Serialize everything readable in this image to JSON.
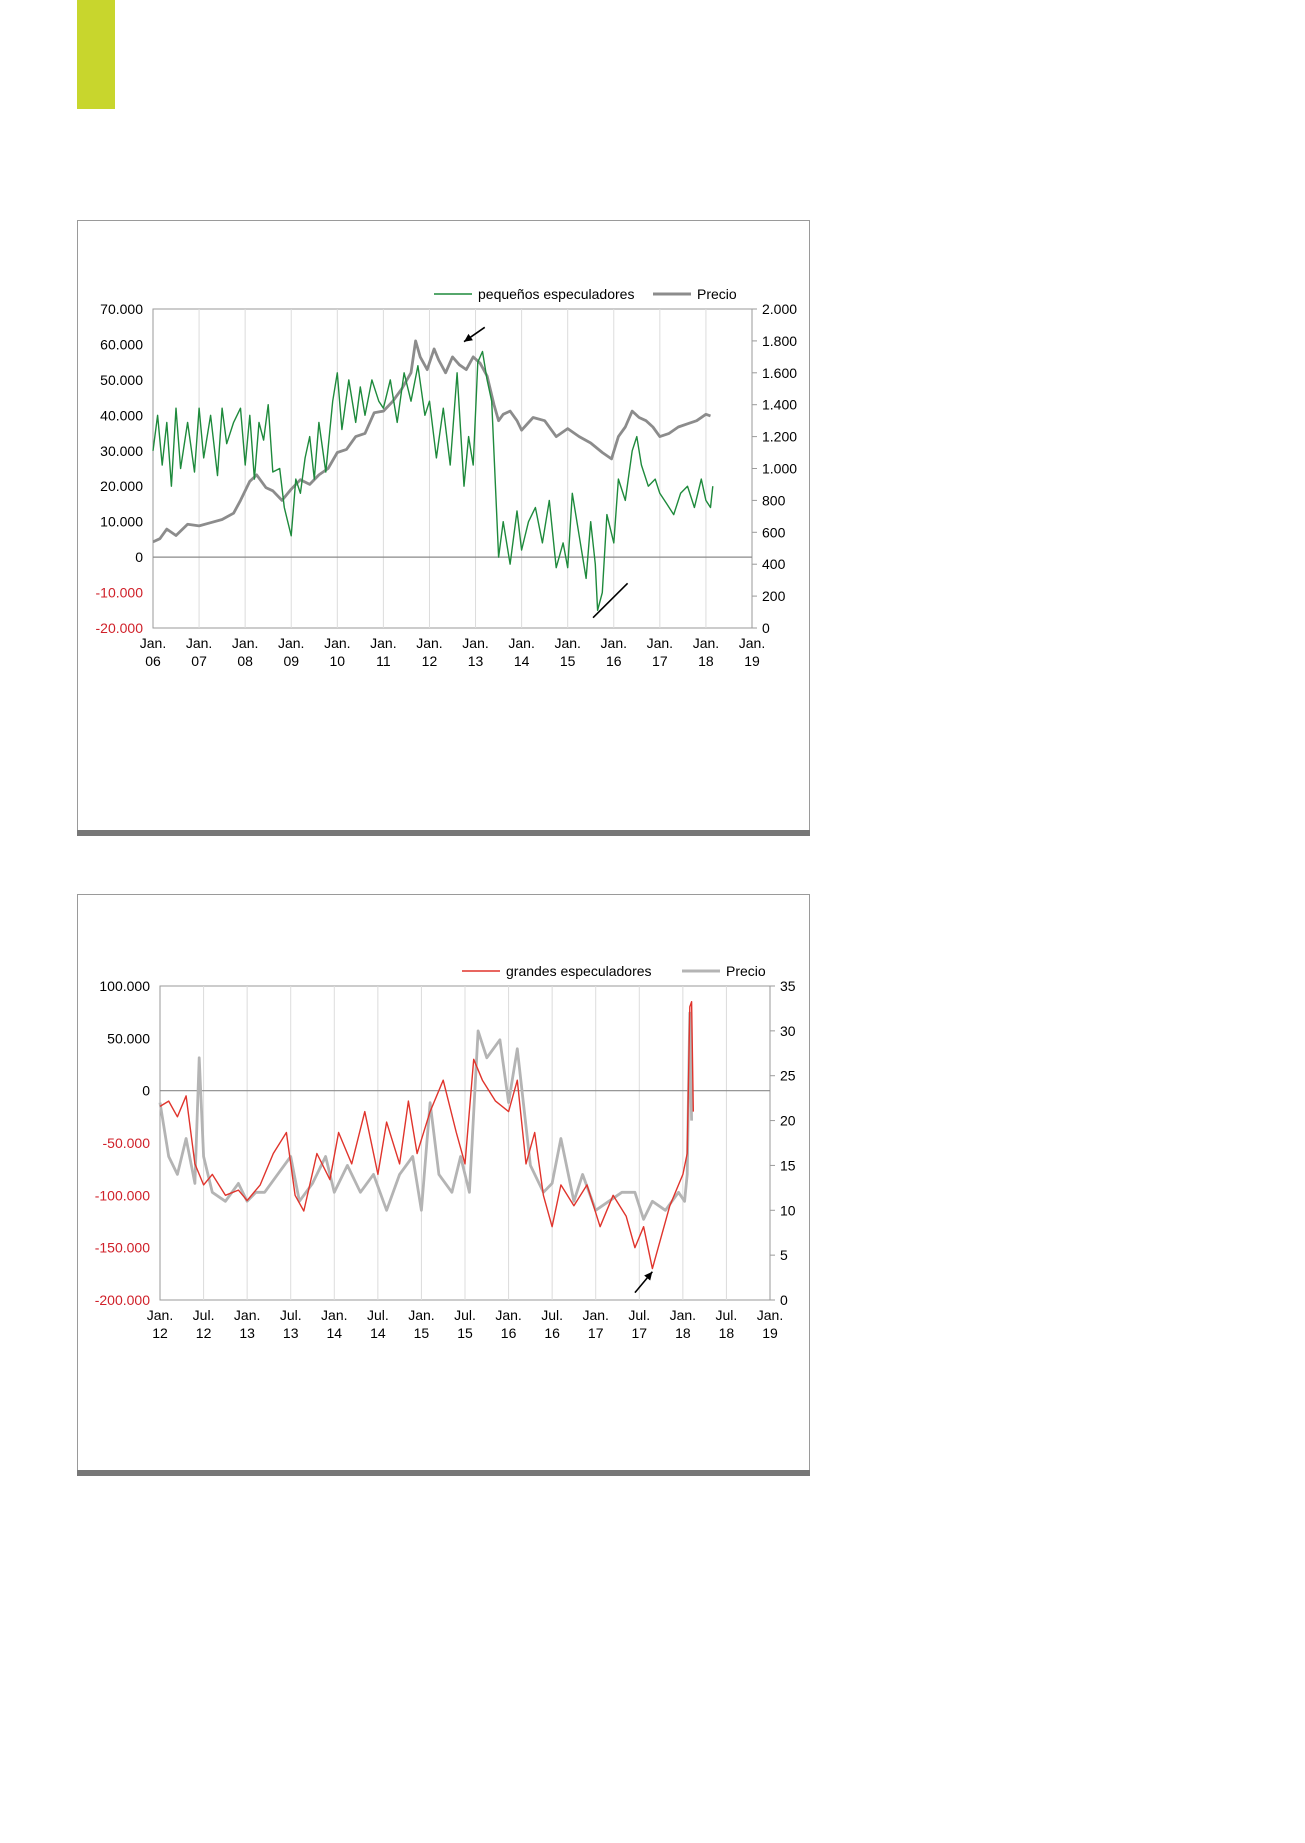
{
  "page": {
    "accent_color": "#c8d62d",
    "rule_color": "#777777"
  },
  "chart_data": [
    {
      "type": "line",
      "legend_position": "top-right",
      "grid": true,
      "x_ticks": [
        {
          "label": "Jan.",
          "sub": "06",
          "t": 2006.0
        },
        {
          "label": "Jan.",
          "sub": "07",
          "t": 2007.0
        },
        {
          "label": "Jan.",
          "sub": "08",
          "t": 2008.0
        },
        {
          "label": "Jan.",
          "sub": "09",
          "t": 2009.0
        },
        {
          "label": "Jan.",
          "sub": "10",
          "t": 2010.0
        },
        {
          "label": "Jan.",
          "sub": "11",
          "t": 2011.0
        },
        {
          "label": "Jan.",
          "sub": "12",
          "t": 2012.0
        },
        {
          "label": "Jan.",
          "sub": "13",
          "t": 2013.0
        },
        {
          "label": "Jan.",
          "sub": "14",
          "t": 2014.0
        },
        {
          "label": "Jan.",
          "sub": "15",
          "t": 2015.0
        },
        {
          "label": "Jan.",
          "sub": "16",
          "t": 2016.0
        },
        {
          "label": "Jan.",
          "sub": "17",
          "t": 2017.0
        },
        {
          "label": "Jan.",
          "sub": "18",
          "t": 2018.0
        },
        {
          "label": "Jan.",
          "sub": "19",
          "t": 2019.0
        }
      ],
      "xlim": [
        2006.0,
        2019.0
      ],
      "y_left": {
        "lim": [
          -20000,
          70000
        ],
        "ticks": [
          {
            "v": 70000,
            "label": "70.000",
            "color": "#000000"
          },
          {
            "v": 60000,
            "label": "60.000",
            "color": "#000000"
          },
          {
            "v": 50000,
            "label": "50.000",
            "color": "#000000"
          },
          {
            "v": 40000,
            "label": "40.000",
            "color": "#000000"
          },
          {
            "v": 30000,
            "label": "30.000",
            "color": "#000000"
          },
          {
            "v": 20000,
            "label": "20.000",
            "color": "#000000"
          },
          {
            "v": 10000,
            "label": "10.000",
            "color": "#000000"
          },
          {
            "v": 0,
            "label": "0",
            "color": "#000000"
          },
          {
            "v": -10000,
            "label": "-10.000",
            "color": "#d0212a"
          },
          {
            "v": -20000,
            "label": "-20.000",
            "color": "#d0212a"
          }
        ]
      },
      "y_right": {
        "lim": [
          0,
          2000
        ],
        "ticks": [
          {
            "v": 2000,
            "label": "2.000"
          },
          {
            "v": 1800,
            "label": "1.800"
          },
          {
            "v": 1600,
            "label": "1.600"
          },
          {
            "v": 1400,
            "label": "1.400"
          },
          {
            "v": 1200,
            "label": "1.200"
          },
          {
            "v": 1000,
            "label": "1.000"
          },
          {
            "v": 800,
            "label": "800"
          },
          {
            "v": 600,
            "label": "600"
          },
          {
            "v": 400,
            "label": "400"
          },
          {
            "v": 200,
            "label": "200"
          },
          {
            "v": 0,
            "label": "0"
          }
        ]
      },
      "series": [
        {
          "name": "pequeños especuladores",
          "axis": "left",
          "color": "#1e8a3c",
          "x": [
            2006.0,
            2006.1,
            2006.2,
            2006.3,
            2006.4,
            2006.5,
            2006.6,
            2006.75,
            2006.9,
            2007.0,
            2007.1,
            2007.25,
            2007.4,
            2007.5,
            2007.6,
            2007.75,
            2007.9,
            2008.0,
            2008.1,
            2008.2,
            2008.3,
            2008.4,
            2008.5,
            2008.6,
            2008.75,
            2008.85,
            2009.0,
            2009.1,
            2009.2,
            2009.3,
            2009.4,
            2009.5,
            2009.6,
            2009.75,
            2009.9,
            2010.0,
            2010.1,
            2010.25,
            2010.4,
            2010.5,
            2010.6,
            2010.75,
            2010.9,
            2011.0,
            2011.15,
            2011.3,
            2011.45,
            2011.6,
            2011.75,
            2011.9,
            2012.0,
            2012.15,
            2012.3,
            2012.45,
            2012.6,
            2012.75,
            2012.85,
            2012.95,
            2013.05,
            2013.15,
            2013.25,
            2013.35,
            2013.5,
            2013.6,
            2013.75,
            2013.9,
            2014.0,
            2014.15,
            2014.3,
            2014.45,
            2014.6,
            2014.75,
            2014.9,
            2015.0,
            2015.1,
            2015.25,
            2015.4,
            2015.5,
            2015.6,
            2015.65,
            2015.75,
            2015.85,
            2016.0,
            2016.1,
            2016.25,
            2016.4,
            2016.5,
            2016.6,
            2016.75,
            2016.9,
            2017.0,
            2017.15,
            2017.3,
            2017.45,
            2017.6,
            2017.75,
            2017.9,
            2018.0,
            2018.1,
            2018.15
          ],
          "y": [
            30000,
            40000,
            26000,
            38000,
            20000,
            42000,
            25000,
            38000,
            24000,
            42000,
            28000,
            40000,
            23000,
            42000,
            32000,
            38000,
            42000,
            26000,
            40000,
            22000,
            38000,
            33000,
            43000,
            24000,
            25000,
            14000,
            6000,
            22000,
            18000,
            28000,
            34000,
            22000,
            38000,
            24000,
            44000,
            52000,
            36000,
            50000,
            38000,
            48000,
            40000,
            50000,
            44000,
            42000,
            50000,
            38000,
            52000,
            44000,
            54000,
            40000,
            44000,
            28000,
            42000,
            26000,
            52000,
            20000,
            34000,
            26000,
            55000,
            58000,
            50000,
            44000,
            0,
            10000,
            -2000,
            13000,
            2000,
            10000,
            14000,
            4000,
            16000,
            -3000,
            4000,
            -3000,
            18000,
            6000,
            -6000,
            10000,
            -2000,
            -15000,
            -10000,
            12000,
            4000,
            22000,
            16000,
            30000,
            34000,
            26000,
            20000,
            22000,
            18000,
            15000,
            12000,
            18000,
            20000,
            14000,
            22000,
            16000,
            14000,
            20000
          ]
        },
        {
          "name": "Precio",
          "axis": "right",
          "color": "#8c8c8c",
          "x": [
            2006.0,
            2006.15,
            2006.3,
            2006.5,
            2006.75,
            2007.0,
            2007.25,
            2007.5,
            2007.75,
            2007.9,
            2008.1,
            2008.25,
            2008.45,
            2008.6,
            2008.8,
            2009.0,
            2009.2,
            2009.4,
            2009.6,
            2009.8,
            2010.0,
            2010.2,
            2010.4,
            2010.6,
            2010.8,
            2011.0,
            2011.2,
            2011.4,
            2011.6,
            2011.7,
            2011.8,
            2011.95,
            2012.1,
            2012.2,
            2012.35,
            2012.5,
            2012.65,
            2012.8,
            2012.95,
            2013.1,
            2013.25,
            2013.4,
            2013.5,
            2013.6,
            2013.75,
            2013.9,
            2014.0,
            2014.25,
            2014.5,
            2014.75,
            2015.0,
            2015.25,
            2015.5,
            2015.75,
            2015.95,
            2016.1,
            2016.25,
            2016.4,
            2016.55,
            2016.7,
            2016.85,
            2017.0,
            2017.2,
            2017.4,
            2017.6,
            2017.8,
            2018.0,
            2018.1
          ],
          "y": [
            540,
            560,
            620,
            580,
            650,
            640,
            660,
            680,
            720,
            800,
            920,
            960,
            880,
            860,
            800,
            870,
            930,
            900,
            960,
            1000,
            1100,
            1120,
            1200,
            1220,
            1350,
            1360,
            1420,
            1500,
            1600,
            1800,
            1700,
            1620,
            1750,
            1680,
            1600,
            1700,
            1650,
            1620,
            1700,
            1660,
            1580,
            1400,
            1300,
            1340,
            1360,
            1300,
            1240,
            1320,
            1300,
            1200,
            1250,
            1200,
            1160,
            1100,
            1060,
            1200,
            1260,
            1360,
            1320,
            1300,
            1260,
            1200,
            1220,
            1260,
            1280,
            1300,
            1340,
            1330
          ]
        }
      ],
      "annotations": {
        "arrow": {
          "from": [
            2013.2,
            1885
          ],
          "to": [
            2012.75,
            1795
          ]
        },
        "trendline": {
          "from": [
            2015.55,
            65
          ],
          "to": [
            2016.3,
            280
          ]
        }
      }
    },
    {
      "type": "line",
      "legend_position": "top-right",
      "grid": true,
      "x_ticks": [
        {
          "label": "Jan.",
          "sub": "12",
          "t": 2012.0
        },
        {
          "label": "Jul.",
          "sub": "12",
          "t": 2012.5
        },
        {
          "label": "Jan.",
          "sub": "13",
          "t": 2013.0
        },
        {
          "label": "Jul.",
          "sub": "13",
          "t": 2013.5
        },
        {
          "label": "Jan.",
          "sub": "14",
          "t": 2014.0
        },
        {
          "label": "Jul.",
          "sub": "14",
          "t": 2014.5
        },
        {
          "label": "Jan.",
          "sub": "15",
          "t": 2015.0
        },
        {
          "label": "Jul.",
          "sub": "15",
          "t": 2015.5
        },
        {
          "label": "Jan.",
          "sub": "16",
          "t": 2016.0
        },
        {
          "label": "Jul.",
          "sub": "16",
          "t": 2016.5
        },
        {
          "label": "Jan.",
          "sub": "17",
          "t": 2017.0
        },
        {
          "label": "Jul.",
          "sub": "17",
          "t": 2017.5
        },
        {
          "label": "Jan.",
          "sub": "18",
          "t": 2018.0
        },
        {
          "label": "Jul.",
          "sub": "18",
          "t": 2018.5
        },
        {
          "label": "Jan.",
          "sub": "19",
          "t": 2019.0
        }
      ],
      "xlim": [
        2012.0,
        2019.0
      ],
      "y_left": {
        "lim": [
          -200000,
          100000
        ],
        "ticks": [
          {
            "v": 100000,
            "label": "100.000",
            "color": "#000000"
          },
          {
            "v": 50000,
            "label": "50.000",
            "color": "#000000"
          },
          {
            "v": 0,
            "label": "0",
            "color": "#000000"
          },
          {
            "v": -50000,
            "label": "-50.000",
            "color": "#d0212a"
          },
          {
            "v": -100000,
            "label": "-100.000",
            "color": "#d0212a"
          },
          {
            "v": -150000,
            "label": "-150.000",
            "color": "#d0212a"
          },
          {
            "v": -200000,
            "label": "-200.000",
            "color": "#d0212a"
          }
        ]
      },
      "y_right": {
        "lim": [
          0,
          35
        ],
        "ticks": [
          {
            "v": 35,
            "label": "35"
          },
          {
            "v": 30,
            "label": "30"
          },
          {
            "v": 25,
            "label": "25"
          },
          {
            "v": 20,
            "label": "20"
          },
          {
            "v": 15,
            "label": "15"
          },
          {
            "v": 10,
            "label": "10"
          },
          {
            "v": 5,
            "label": "5"
          },
          {
            "v": 0,
            "label": "0"
          }
        ]
      },
      "series": [
        {
          "name": "grandes especuladores",
          "axis": "left",
          "color": "#e0342c",
          "x": [
            2012.0,
            2012.1,
            2012.2,
            2012.3,
            2012.4,
            2012.5,
            2012.6,
            2012.75,
            2012.9,
            2013.0,
            2013.15,
            2013.3,
            2013.45,
            2013.55,
            2013.65,
            2013.8,
            2013.95,
            2014.05,
            2014.2,
            2014.35,
            2014.5,
            2014.6,
            2014.75,
            2014.85,
            2014.95,
            2015.1,
            2015.25,
            2015.4,
            2015.5,
            2015.6,
            2015.7,
            2015.85,
            2016.0,
            2016.1,
            2016.2,
            2016.3,
            2016.4,
            2016.5,
            2016.6,
            2016.75,
            2016.9,
            2017.05,
            2017.2,
            2017.35,
            2017.45,
            2017.55,
            2017.65,
            2017.75,
            2017.85,
            2017.95,
            2018.0,
            2018.05,
            2018.08,
            2018.1,
            2018.12
          ],
          "y": [
            -15000,
            -10000,
            -25000,
            -5000,
            -70000,
            -90000,
            -80000,
            -100000,
            -95000,
            -105000,
            -90000,
            -60000,
            -40000,
            -100000,
            -115000,
            -60000,
            -85000,
            -40000,
            -70000,
            -20000,
            -80000,
            -30000,
            -70000,
            -10000,
            -60000,
            -20000,
            10000,
            -40000,
            -70000,
            30000,
            10000,
            -10000,
            -20000,
            10000,
            -70000,
            -40000,
            -100000,
            -130000,
            -90000,
            -110000,
            -90000,
            -130000,
            -100000,
            -120000,
            -150000,
            -130000,
            -170000,
            -140000,
            -110000,
            -90000,
            -80000,
            -60000,
            80000,
            85000,
            -20000
          ]
        },
        {
          "name": "Precio",
          "axis": "right",
          "color": "#b4b4b4",
          "x": [
            2012.0,
            2012.1,
            2012.2,
            2012.3,
            2012.4,
            2012.45,
            2012.5,
            2012.6,
            2012.75,
            2012.9,
            2013.0,
            2013.1,
            2013.2,
            2013.35,
            2013.5,
            2013.6,
            2013.75,
            2013.9,
            2014.0,
            2014.15,
            2014.3,
            2014.45,
            2014.6,
            2014.75,
            2014.9,
            2015.0,
            2015.1,
            2015.2,
            2015.35,
            2015.45,
            2015.55,
            2015.65,
            2015.75,
            2015.9,
            2016.0,
            2016.1,
            2016.25,
            2016.4,
            2016.5,
            2016.6,
            2016.75,
            2016.85,
            2017.0,
            2017.15,
            2017.3,
            2017.45,
            2017.55,
            2017.65,
            2017.8,
            2017.95,
            2018.02,
            2018.05,
            2018.08,
            2018.1
          ],
          "y": [
            22,
            16,
            14,
            18,
            13,
            27,
            16,
            12,
            11,
            13,
            11,
            12,
            12,
            14,
            16,
            11,
            13,
            16,
            12,
            15,
            12,
            14,
            10,
            14,
            16,
            10,
            22,
            14,
            12,
            16,
            12,
            30,
            27,
            29,
            22,
            28,
            15,
            12,
            13,
            18,
            11,
            14,
            10,
            11,
            12,
            12,
            9,
            11,
            10,
            12,
            11,
            14,
            32,
            20
          ]
        }
      ],
      "annotations": {
        "arrow": {
          "from": [
            2017.45,
            -193000
          ],
          "to": [
            2017.65,
            -173000
          ]
        }
      }
    }
  ]
}
